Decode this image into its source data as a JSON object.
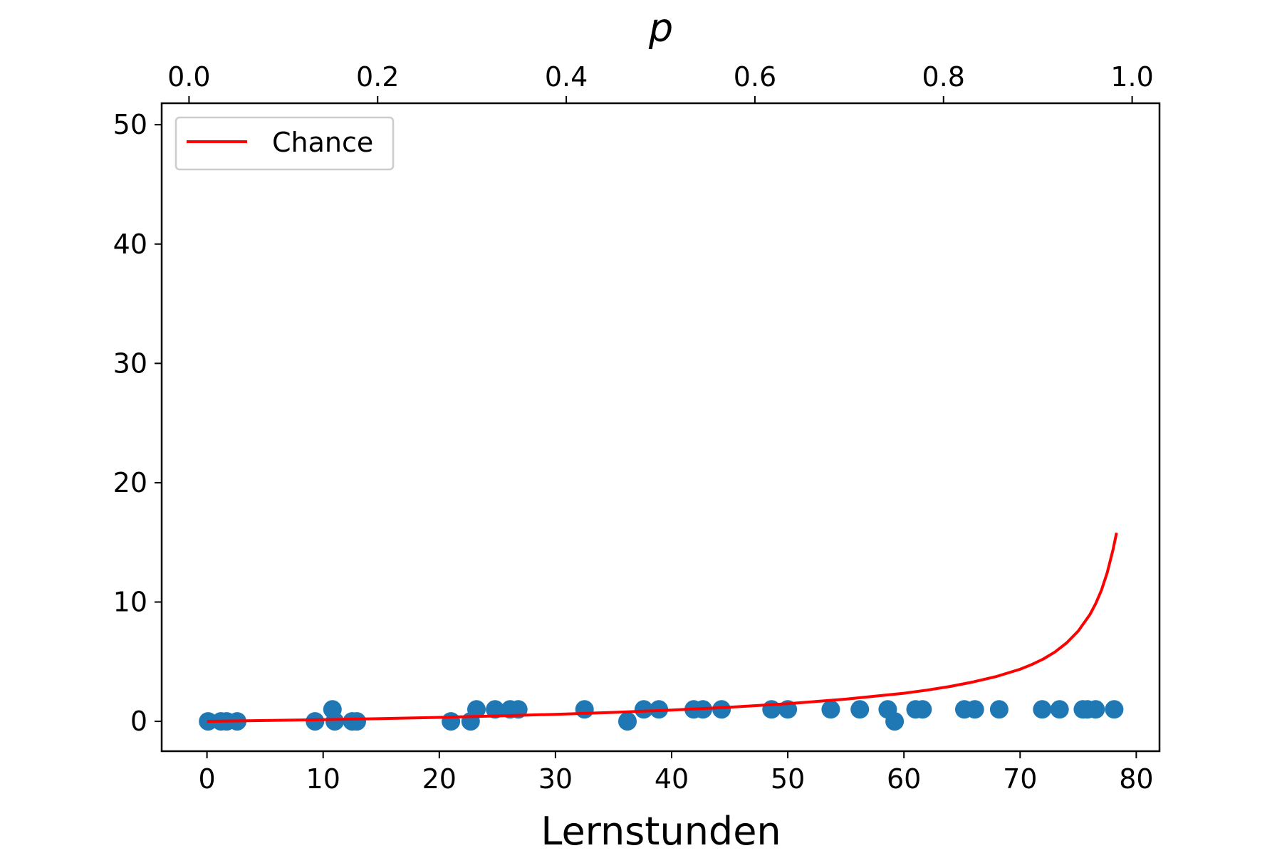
{
  "chart_data": {
    "type": "scatter",
    "title": "",
    "xlabel": "Lernstunden",
    "ylabel": "",
    "secondary_xlabel": "p",
    "xlim": [
      -3.9,
      82.0
    ],
    "ylim": [
      -2.5,
      51.8
    ],
    "secondary_xlim": [
      -0.029,
      1.029
    ],
    "x_ticks": [
      0,
      10,
      20,
      30,
      40,
      50,
      60,
      70,
      80
    ],
    "y_ticks": [
      0,
      10,
      20,
      30,
      40,
      50
    ],
    "secondary_x_ticks": [
      "0.0",
      "0.2",
      "0.4",
      "0.6",
      "0.8",
      "1.0"
    ],
    "grid": false,
    "legend": {
      "placement": "top-left",
      "entries": [
        "Chance"
      ]
    },
    "colors": {
      "scatter": "#1f77b4",
      "line": "#ff0000"
    },
    "series": [
      {
        "kind": "scatter",
        "x": [
          0.1,
          1.2,
          1.7,
          2.6,
          9.3,
          10.8,
          11.0,
          12.5,
          12.9,
          21.0,
          22.7,
          23.2,
          24.8,
          26.1,
          26.8,
          32.5,
          36.2,
          37.6,
          38.9,
          41.9,
          42.7,
          44.3,
          48.6,
          50.0,
          53.7,
          56.2,
          58.6,
          59.2,
          61.0,
          61.6,
          65.2,
          66.1,
          68.2,
          71.9,
          73.4,
          75.4,
          75.8,
          76.5,
          78.1
        ],
        "y": [
          0,
          0,
          0,
          0,
          0,
          1,
          0,
          0,
          0,
          0,
          0,
          1,
          1,
          1,
          1,
          1,
          0,
          1,
          1,
          1,
          1,
          1,
          1,
          1,
          1,
          1,
          1,
          0,
          1,
          1,
          1,
          1,
          1,
          1,
          1,
          1,
          1,
          1,
          1
        ]
      },
      {
        "kind": "line",
        "name": "Chance",
        "x": [
          0,
          5,
          10,
          15,
          20,
          25,
          30,
          35,
          40,
          45,
          50,
          55,
          60,
          62,
          64,
          66,
          68,
          70,
          71,
          72,
          73,
          74,
          75,
          76,
          76.5,
          77,
          77.5,
          78,
          78.3
        ],
        "y": [
          0.0,
          0.069,
          0.146,
          0.235,
          0.335,
          0.452,
          0.588,
          0.75,
          0.944,
          1.18,
          1.48,
          1.86,
          2.36,
          2.62,
          2.93,
          3.31,
          3.77,
          4.37,
          4.76,
          5.23,
          5.81,
          6.57,
          7.56,
          8.93,
          9.85,
          10.99,
          12.46,
          14.4,
          15.8
        ]
      }
    ]
  }
}
